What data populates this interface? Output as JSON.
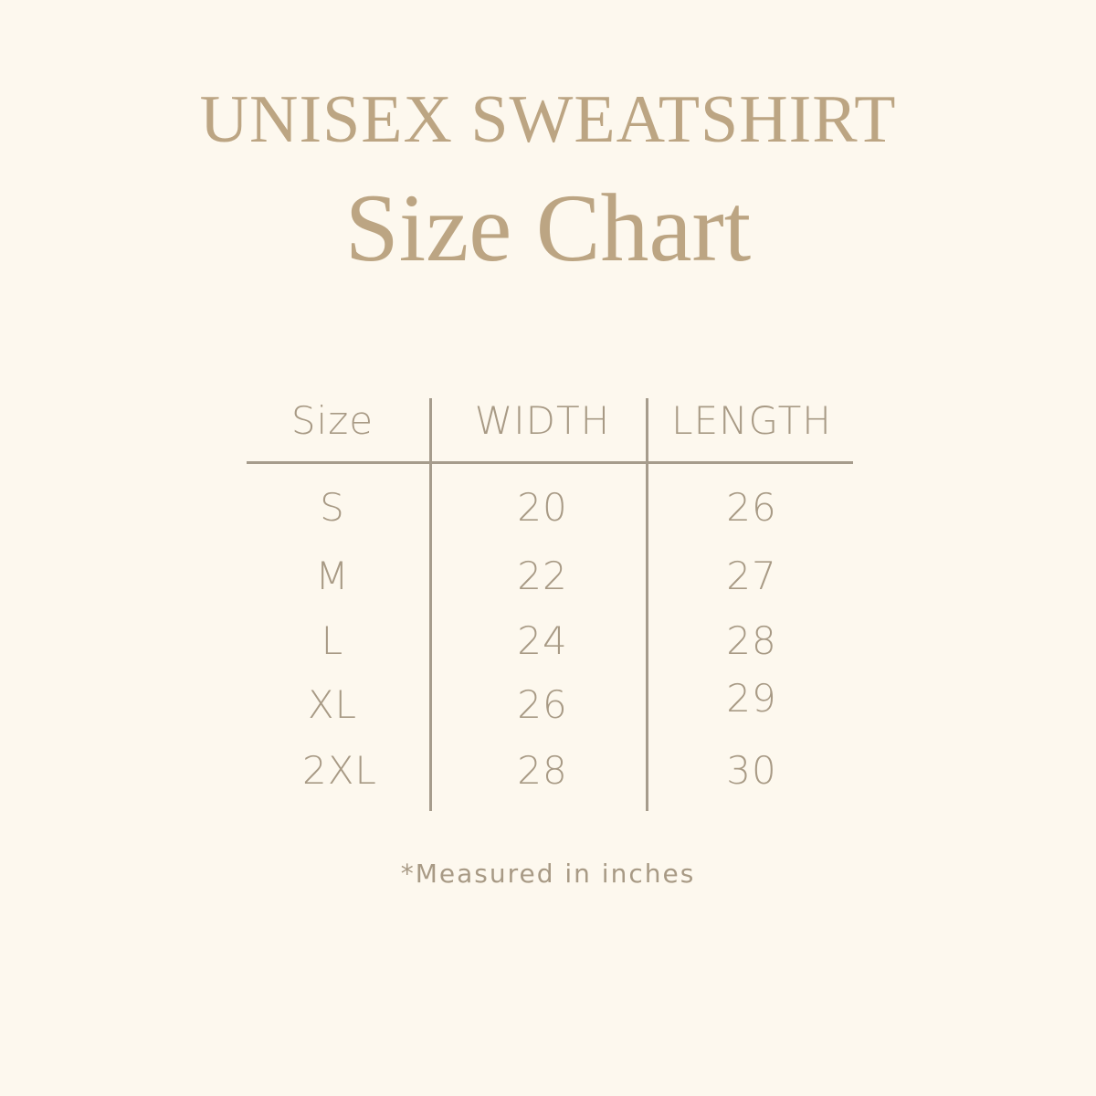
{
  "title": "UNISEX SWEATSHIRT",
  "subtitle": "Size Chart",
  "table": {
    "headers": [
      "Size",
      "WIDTH",
      "LENGTH"
    ],
    "rows": [
      [
        "S",
        "20",
        "26"
      ],
      [
        "M",
        "22",
        "27"
      ],
      [
        "L",
        "24",
        "28"
      ],
      [
        "XL",
        "26",
        "29"
      ],
      [
        "2XL",
        "28",
        "30"
      ]
    ]
  },
  "footnote": "*Measured in inches",
  "colors": {
    "background": "#fdf8ee",
    "title": "#bca583",
    "text": "#a89a85",
    "rules": "#a69c8c"
  }
}
